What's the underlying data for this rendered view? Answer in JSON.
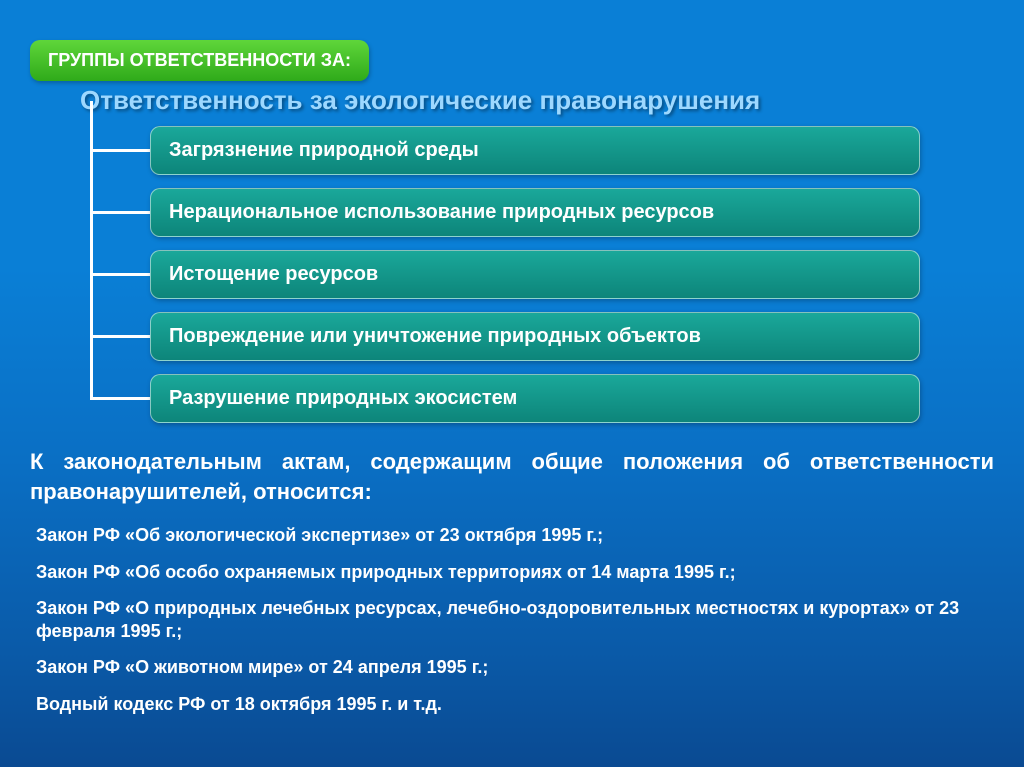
{
  "background": {
    "gradient_stops": [
      "#0a7fd6",
      "#0a7fd6",
      "#0a6fc4",
      "#0a5aa8",
      "#0a4a92"
    ],
    "gradient_positions": [
      0,
      0.35,
      0.6,
      0.85,
      1
    ]
  },
  "header_badge": {
    "text": "ГРУППЫ ОТВЕТСТВЕННОСТИ ЗА:",
    "bg_top": "#5fd63a",
    "bg_bottom": "#2faa1a",
    "text_color": "#ffffff"
  },
  "title": {
    "text": "Ответственность за экологические правонарушения",
    "color": "#9dd8ff"
  },
  "items": [
    {
      "label": "Загрязнение природной среды"
    },
    {
      "label": "Нерациональное использование природных ресурсов"
    },
    {
      "label": "Истощение ресурсов"
    },
    {
      "label": "Повреждение или уничтожение природных объектов"
    },
    {
      "label": "Разрушение природных экосистем"
    }
  ],
  "item_box_style": {
    "bg_top": "#1aa89a",
    "bg_bottom": "#0d857a",
    "text_color": "#ffffff"
  },
  "connector_color": "#ffffff",
  "legislation": {
    "intro": "К законодательным актам, содержащим общие положения об ответственности правонарушителей, относится:",
    "color": "#ffffff",
    "items": [
      "Закон РФ «Об экологической экспертизе» от 23 октября 1995 г.;",
      "Закон РФ «Об особо охраняемых природных территориях от 14 марта 1995 г.;",
      "Закон РФ «О природных лечебных ресурсах, лечебно-оздоровительных местностях и курортах» от 23 февраля 1995 г.;",
      "Закон РФ «О животном мире» от 24 апреля 1995 г.;",
      "Водный кодекс РФ от 18 октября 1995 г. и т.д."
    ]
  }
}
